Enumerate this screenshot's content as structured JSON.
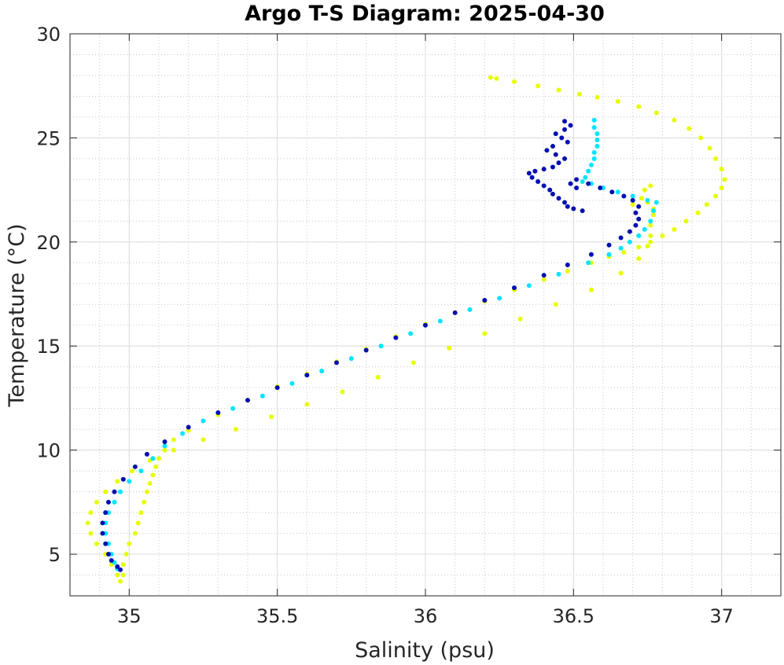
{
  "chart_data": {
    "type": "scatter",
    "title": "Argo T-S Diagram: 2025-04-30",
    "xlabel": "Salinity (psu)",
    "ylabel": "Temperature (°C)",
    "xlim": [
      34.8,
      37.2
    ],
    "ylim": [
      3,
      30
    ],
    "xticks": [
      35,
      35.5,
      36,
      36.5,
      37
    ],
    "xtick_labels": [
      "35",
      "35.5",
      "36",
      "36.5",
      "37"
    ],
    "yticks": [
      5,
      10,
      15,
      20,
      25,
      30
    ],
    "ytick_labels": [
      "5",
      "10",
      "15",
      "20",
      "25",
      "30"
    ],
    "grid": true,
    "minor_grid": true,
    "legend": "none",
    "series": [
      {
        "color": "#e6ff00",
        "points": [
          [
            36.22,
            27.9
          ],
          [
            36.24,
            27.85
          ],
          [
            36.3,
            27.7
          ],
          [
            36.38,
            27.5
          ],
          [
            36.45,
            27.3
          ],
          [
            36.52,
            27.1
          ],
          [
            36.58,
            26.95
          ],
          [
            36.65,
            26.75
          ],
          [
            36.72,
            26.5
          ],
          [
            36.78,
            26.2
          ],
          [
            36.84,
            25.85
          ],
          [
            36.89,
            25.45
          ],
          [
            36.93,
            25.0
          ],
          [
            36.96,
            24.5
          ],
          [
            36.98,
            24.0
          ],
          [
            37.0,
            23.5
          ],
          [
            37.01,
            23.0
          ],
          [
            37.0,
            22.6
          ],
          [
            36.98,
            22.2
          ],
          [
            36.95,
            21.8
          ],
          [
            36.92,
            21.4
          ],
          [
            36.88,
            21.0
          ],
          [
            36.84,
            20.6
          ],
          [
            36.8,
            20.3
          ],
          [
            36.76,
            20.0
          ],
          [
            36.72,
            19.75
          ],
          [
            36.67,
            19.5
          ],
          [
            36.62,
            19.3
          ],
          [
            36.56,
            19.0
          ],
          [
            36.48,
            18.6
          ],
          [
            36.4,
            18.2
          ],
          [
            36.3,
            17.7
          ],
          [
            36.2,
            17.15
          ],
          [
            36.1,
            16.6
          ],
          [
            36.0,
            16.05
          ],
          [
            35.9,
            15.45
          ],
          [
            35.8,
            14.85
          ],
          [
            35.7,
            14.25
          ],
          [
            35.6,
            13.65
          ],
          [
            35.5,
            13.05
          ],
          [
            35.4,
            12.4
          ],
          [
            35.3,
            11.7
          ],
          [
            35.2,
            10.95
          ],
          [
            35.15,
            10.5
          ],
          [
            35.12,
            10.0
          ],
          [
            35.1,
            9.6
          ],
          [
            35.09,
            9.2
          ],
          [
            35.08,
            8.8
          ],
          [
            35.07,
            8.4
          ],
          [
            35.06,
            8.0
          ],
          [
            35.05,
            7.5
          ],
          [
            35.04,
            7.0
          ],
          [
            35.03,
            6.5
          ],
          [
            35.02,
            6.0
          ],
          [
            35.0,
            5.5
          ],
          [
            34.99,
            5.0
          ],
          [
            34.98,
            4.5
          ],
          [
            34.98,
            4.0
          ],
          [
            34.97,
            3.7
          ],
          [
            34.96,
            4.0
          ],
          [
            34.94,
            4.5
          ],
          [
            34.92,
            5.0
          ],
          [
            34.89,
            5.5
          ],
          [
            34.87,
            6.0
          ],
          [
            34.86,
            6.5
          ],
          [
            34.87,
            7.0
          ],
          [
            34.89,
            7.5
          ],
          [
            34.92,
            8.0
          ],
          [
            34.96,
            8.5
          ],
          [
            35.01,
            9.0
          ],
          [
            35.07,
            9.5
          ],
          [
            35.15,
            10.0
          ],
          [
            35.25,
            10.5
          ],
          [
            35.36,
            11.0
          ],
          [
            35.48,
            11.6
          ],
          [
            35.6,
            12.2
          ],
          [
            35.72,
            12.8
          ],
          [
            35.84,
            13.5
          ],
          [
            35.96,
            14.2
          ],
          [
            36.08,
            14.9
          ],
          [
            36.2,
            15.6
          ],
          [
            36.32,
            16.3
          ],
          [
            36.44,
            17.0
          ],
          [
            36.56,
            17.7
          ],
          [
            36.66,
            18.5
          ],
          [
            36.72,
            19.2
          ],
          [
            36.75,
            19.8
          ],
          [
            36.76,
            20.3
          ],
          [
            36.76,
            20.8
          ],
          [
            36.77,
            21.3
          ],
          [
            36.77,
            21.6
          ],
          [
            36.75,
            21.9
          ],
          [
            36.73,
            22.1
          ],
          [
            36.7,
            21.8
          ],
          [
            36.74,
            22.5
          ],
          [
            36.76,
            22.7
          ]
        ]
      },
      {
        "color": "#00e5ff",
        "points": [
          [
            36.57,
            25.85
          ],
          [
            36.57,
            25.5
          ],
          [
            36.58,
            25.2
          ],
          [
            36.58,
            24.9
          ],
          [
            36.58,
            24.6
          ],
          [
            36.57,
            24.3
          ],
          [
            36.57,
            24.0
          ],
          [
            36.56,
            23.7
          ],
          [
            36.55,
            23.4
          ],
          [
            36.54,
            23.1
          ],
          [
            36.53,
            22.9
          ],
          [
            36.56,
            22.8
          ],
          [
            36.6,
            22.6
          ],
          [
            36.65,
            22.4
          ],
          [
            36.7,
            22.2
          ],
          [
            36.75,
            22.0
          ],
          [
            36.78,
            21.9
          ],
          [
            36.77,
            21.5
          ],
          [
            36.76,
            21.0
          ],
          [
            36.74,
            20.6
          ],
          [
            36.72,
            20.3
          ],
          [
            36.69,
            20.0
          ],
          [
            36.66,
            19.7
          ],
          [
            36.62,
            19.4
          ],
          [
            36.55,
            19.0
          ],
          [
            36.45,
            18.45
          ],
          [
            36.35,
            17.9
          ],
          [
            36.25,
            17.3
          ],
          [
            36.15,
            16.75
          ],
          [
            36.05,
            16.2
          ],
          [
            35.95,
            15.6
          ],
          [
            35.85,
            15.0
          ],
          [
            35.75,
            14.4
          ],
          [
            35.65,
            13.8
          ],
          [
            35.55,
            13.2
          ],
          [
            35.45,
            12.6
          ],
          [
            35.35,
            12.0
          ],
          [
            35.25,
            11.4
          ],
          [
            35.18,
            10.8
          ],
          [
            35.12,
            10.2
          ],
          [
            35.08,
            9.6
          ],
          [
            35.04,
            9.0
          ],
          [
            35.0,
            8.5
          ],
          [
            34.97,
            8.0
          ],
          [
            34.95,
            7.5
          ],
          [
            34.93,
            7.0
          ],
          [
            34.92,
            6.5
          ],
          [
            34.92,
            6.0
          ],
          [
            34.93,
            5.5
          ],
          [
            34.94,
            5.0
          ],
          [
            34.95,
            4.6
          ],
          [
            34.96,
            4.3
          ]
        ]
      },
      {
        "color": "#0010b0",
        "points": [
          [
            36.47,
            25.8
          ],
          [
            36.49,
            25.6
          ],
          [
            36.47,
            25.4
          ],
          [
            36.44,
            25.2
          ],
          [
            36.46,
            25.0
          ],
          [
            36.48,
            24.8
          ],
          [
            36.43,
            24.6
          ],
          [
            36.41,
            24.4
          ],
          [
            36.44,
            24.2
          ],
          [
            36.47,
            24.0
          ],
          [
            36.45,
            23.8
          ],
          [
            36.43,
            23.6
          ],
          [
            36.4,
            23.5
          ],
          [
            36.37,
            23.4
          ],
          [
            36.35,
            23.3
          ],
          [
            36.36,
            23.1
          ],
          [
            36.38,
            22.9
          ],
          [
            36.4,
            22.7
          ],
          [
            36.42,
            22.5
          ],
          [
            36.43,
            22.3
          ],
          [
            36.45,
            22.1
          ],
          [
            36.47,
            21.9
          ],
          [
            36.48,
            21.7
          ],
          [
            36.5,
            21.6
          ],
          [
            36.53,
            21.5
          ],
          [
            36.51,
            22.6
          ],
          [
            36.49,
            22.8
          ],
          [
            36.51,
            23.0
          ],
          [
            36.55,
            22.8
          ],
          [
            36.59,
            22.6
          ],
          [
            36.63,
            22.4
          ],
          [
            36.67,
            22.2
          ],
          [
            36.7,
            22.0
          ],
          [
            36.72,
            21.7
          ],
          [
            36.71,
            21.4
          ],
          [
            36.72,
            21.1
          ],
          [
            36.71,
            20.8
          ],
          [
            36.69,
            20.5
          ],
          [
            36.66,
            20.2
          ],
          [
            36.62,
            19.85
          ],
          [
            36.56,
            19.4
          ],
          [
            36.48,
            18.9
          ],
          [
            36.4,
            18.4
          ],
          [
            36.3,
            17.8
          ],
          [
            36.2,
            17.2
          ],
          [
            36.1,
            16.6
          ],
          [
            36.0,
            16.0
          ],
          [
            35.9,
            15.4
          ],
          [
            35.8,
            14.8
          ],
          [
            35.7,
            14.2
          ],
          [
            35.6,
            13.6
          ],
          [
            35.5,
            13.0
          ],
          [
            35.4,
            12.4
          ],
          [
            35.3,
            11.8
          ],
          [
            35.2,
            11.1
          ],
          [
            35.12,
            10.4
          ],
          [
            35.06,
            9.8
          ],
          [
            35.02,
            9.2
          ],
          [
            34.98,
            8.6
          ],
          [
            34.95,
            8.0
          ],
          [
            34.93,
            7.5
          ],
          [
            34.92,
            7.0
          ],
          [
            34.91,
            6.5
          ],
          [
            34.91,
            6.0
          ],
          [
            34.92,
            5.5
          ],
          [
            34.93,
            5.0
          ],
          [
            34.94,
            4.7
          ],
          [
            34.96,
            4.4
          ],
          [
            34.97,
            4.25
          ]
        ]
      }
    ]
  }
}
